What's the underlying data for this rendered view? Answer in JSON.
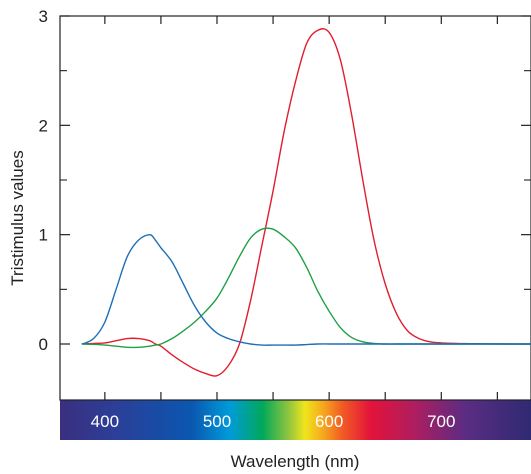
{
  "chart_data": {
    "type": "line",
    "xlabel": "Wavelength (nm)",
    "ylabel": "Tristimulus values",
    "xlim": [
      360,
      780
    ],
    "ylim": [
      -0.3,
      3
    ],
    "y_ticks": [
      {
        "value": 0,
        "label": "0"
      },
      {
        "value": 1,
        "label": "1"
      },
      {
        "value": 2,
        "label": "2"
      },
      {
        "value": 3,
        "label": "3"
      }
    ],
    "y_minor_ticks": [
      0.5,
      1.5,
      2.5
    ],
    "x_ticks": [
      400,
      450,
      500,
      550,
      600,
      650,
      700,
      750
    ],
    "spectrum_labels": [
      {
        "value": 400,
        "label": "400"
      },
      {
        "value": 500,
        "label": "500"
      },
      {
        "value": 600,
        "label": "600"
      },
      {
        "value": 700,
        "label": "700"
      }
    ],
    "grid": false,
    "legend": "none",
    "x_values": [
      380,
      390,
      400,
      410,
      420,
      430,
      440,
      445,
      450,
      460,
      470,
      480,
      490,
      500,
      510,
      520,
      530,
      540,
      550,
      560,
      570,
      580,
      590,
      600,
      610,
      620,
      630,
      640,
      650,
      660,
      670,
      680,
      690,
      700,
      720,
      740,
      760,
      780
    ],
    "series": [
      {
        "color": "#e01e2f",
        "values": [
          0.002,
          0.005,
          0.01,
          0.03,
          0.05,
          0.05,
          0.03,
          0.0,
          -0.02,
          -0.1,
          -0.17,
          -0.23,
          -0.27,
          -0.29,
          -0.2,
          0.0,
          0.4,
          0.9,
          1.4,
          1.95,
          2.4,
          2.75,
          2.87,
          2.85,
          2.6,
          2.1,
          1.5,
          0.95,
          0.55,
          0.28,
          0.12,
          0.05,
          0.02,
          0.01,
          0.004,
          0.002,
          0.0,
          0.0
        ]
      },
      {
        "color": "#1fa045",
        "values": [
          -0.001,
          -0.003,
          -0.01,
          -0.02,
          -0.03,
          -0.03,
          -0.02,
          -0.01,
          0.0,
          0.05,
          0.12,
          0.2,
          0.3,
          0.42,
          0.6,
          0.8,
          0.97,
          1.05,
          1.05,
          0.98,
          0.88,
          0.7,
          0.48,
          0.3,
          0.15,
          0.06,
          0.02,
          0.005,
          0.0,
          0.0,
          0.0,
          0.0,
          0.0,
          0.0,
          0.0,
          0.0,
          0.0,
          0.0
        ]
      },
      {
        "color": "#1e6fb8",
        "values": [
          0.0,
          0.05,
          0.2,
          0.5,
          0.8,
          0.95,
          1.0,
          0.95,
          0.88,
          0.75,
          0.55,
          0.35,
          0.2,
          0.1,
          0.05,
          0.02,
          0.0,
          -0.01,
          -0.01,
          -0.01,
          -0.01,
          -0.005,
          0.0,
          0.0,
          0.0,
          0.0,
          0.0,
          0.0,
          0.0,
          0.0,
          0.0,
          0.0,
          0.0,
          0.0,
          0.0,
          0.0,
          0.0,
          0.0
        ]
      }
    ]
  }
}
